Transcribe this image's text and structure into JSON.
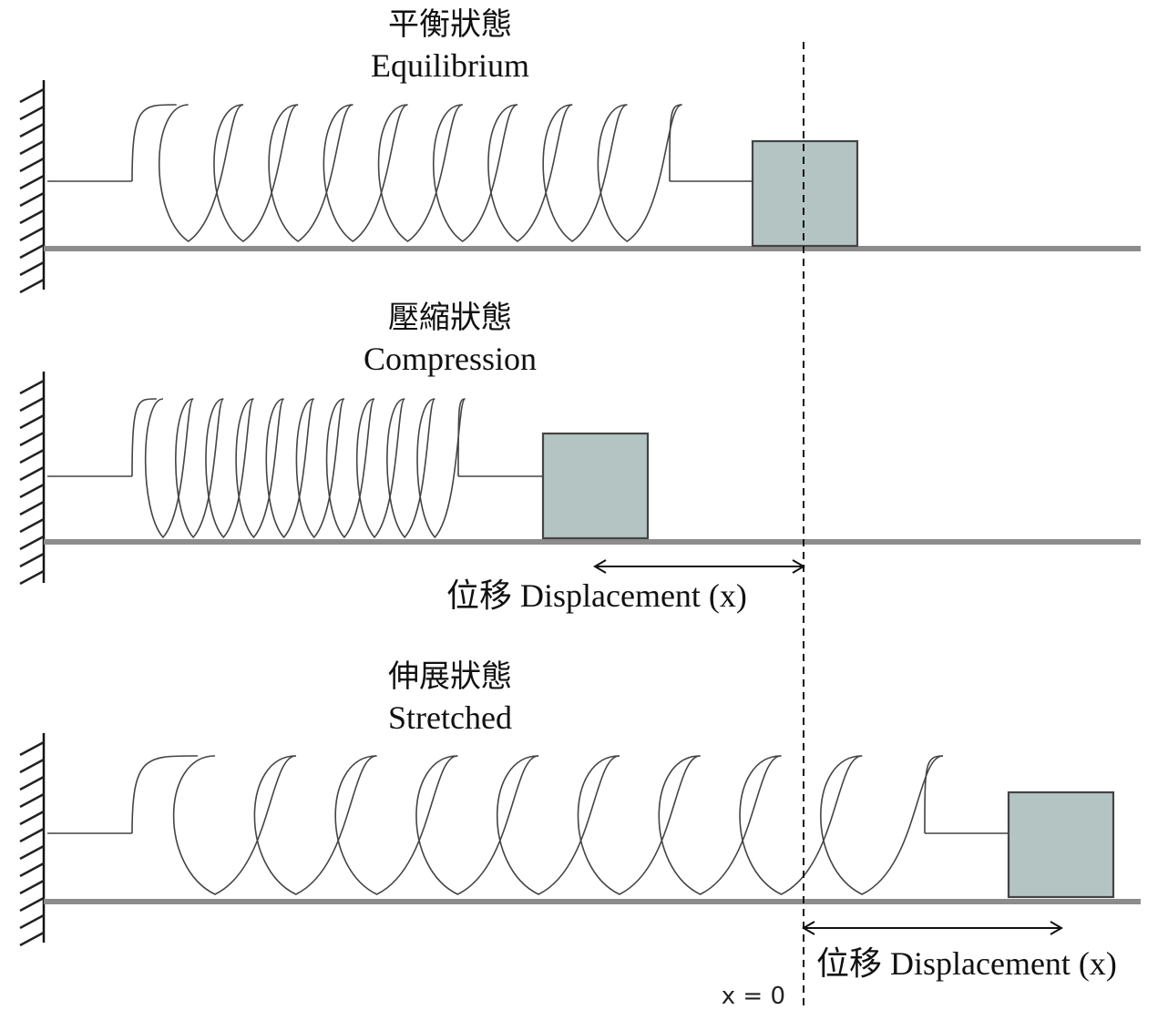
{
  "states": [
    {
      "id": "equilibrium",
      "title_zh": "平衡狀態",
      "title_en": "Equilibrium",
      "coils": 9
    },
    {
      "id": "compression",
      "title_zh": "壓縮狀態",
      "title_en": "Compression",
      "coils": 10
    },
    {
      "id": "stretched",
      "title_zh": "伸展狀態",
      "title_en": "Stretched",
      "coils": 9
    }
  ],
  "displacement_label": "位移 Displacement (x)",
  "origin_label": "x = 0",
  "colors": {
    "block": "#b4c4c2",
    "floor": "#8c8c8c",
    "line": "#444444"
  }
}
